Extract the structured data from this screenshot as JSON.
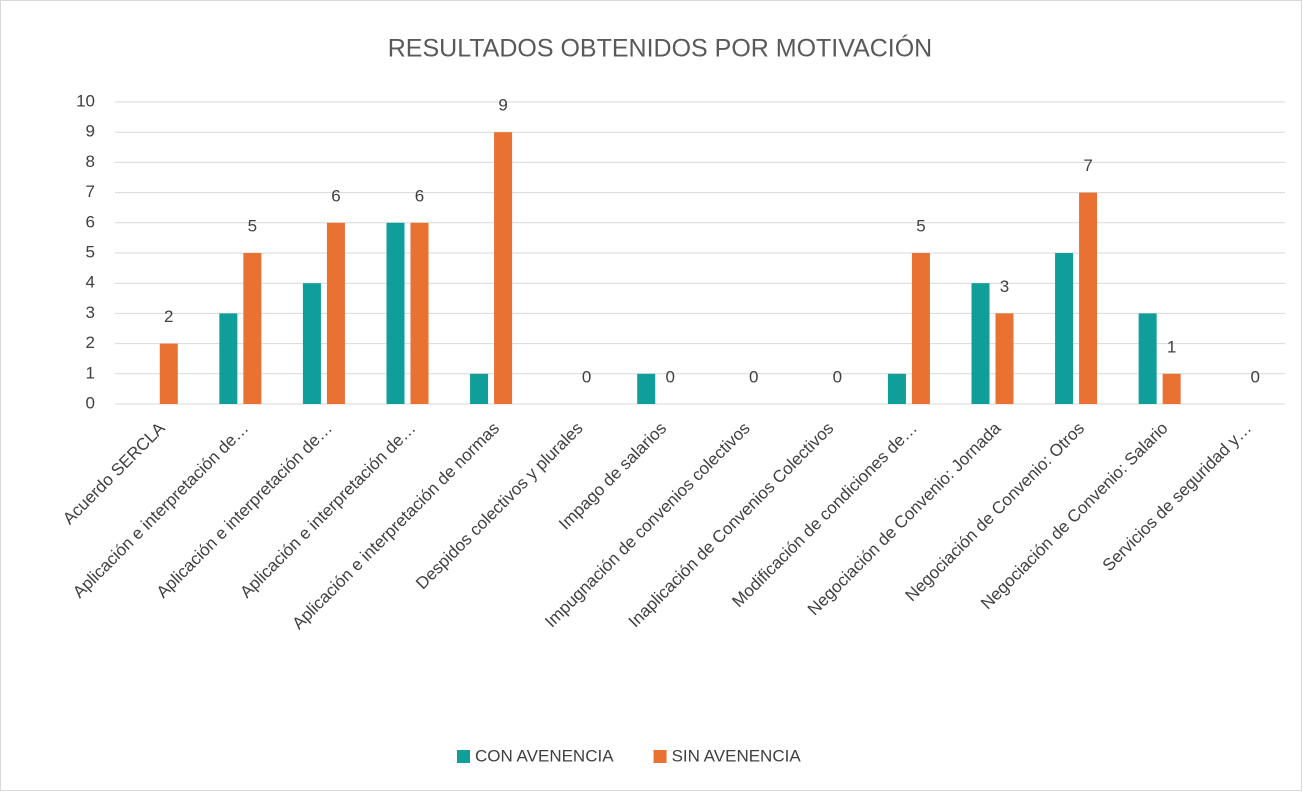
{
  "chart_data": {
    "type": "bar",
    "title": "RESULTADOS OBTENIDOS POR MOTIVACIÓN",
    "categories": [
      "Acuerdo SERCLA",
      "Aplicación e interpretación de…",
      "Aplicación e interpretación de…",
      "Aplicación e interpretación de…",
      "Aplicación e interpretación de normas",
      "Despidos colectivos y plurales",
      "Impago de salarios",
      "Impugnación de convenios colectivos",
      "Inaplicación de Convenios Colectivos",
      "Modificación de condiciones de…",
      "Negociación de Convenio: Jornada",
      "Negociación de Convenio: Otros",
      "Negociación de Convenio: Salario",
      "Servicios de seguridad y…"
    ],
    "series": [
      {
        "name": "CON AVENENCIA",
        "color": "#0f9e9a",
        "values": [
          0,
          3,
          4,
          6,
          1,
          0,
          1,
          0,
          0,
          1,
          4,
          5,
          3,
          0
        ]
      },
      {
        "name": "SIN AVENENCIA",
        "color": "#e97132",
        "values": [
          2,
          5,
          6,
          6,
          9,
          0,
          0,
          0,
          0,
          5,
          3,
          7,
          1,
          0
        ],
        "data_labels": true
      }
    ],
    "ylim": [
      0,
      10
    ],
    "yticks": [
      0,
      1,
      2,
      3,
      4,
      5,
      6,
      7,
      8,
      9,
      10
    ],
    "grid": true,
    "legend": "bottom"
  }
}
